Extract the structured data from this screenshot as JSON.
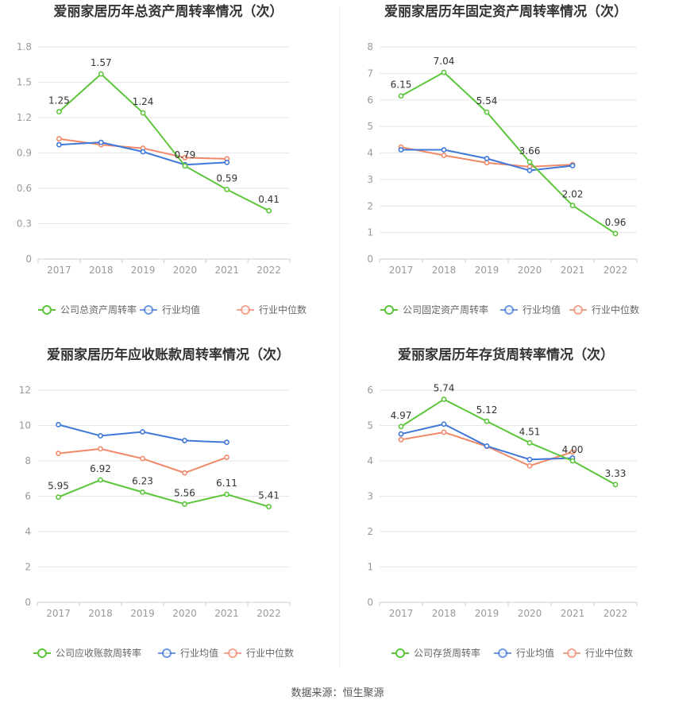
{
  "source_text": "数据来源：恒生聚源",
  "colors": {
    "company": "#5cc53a",
    "avg": "#3f78d8",
    "median": "#f0896a",
    "grid": "#e6e6e6",
    "axis": "#cccccc"
  },
  "chart_data": [
    {
      "type": "line",
      "title": "爱丽家居历年总资产周转率情况（次）",
      "categories": [
        "2017",
        "2018",
        "2019",
        "2020",
        "2021",
        "2022"
      ],
      "ylim": [
        0,
        1.8
      ],
      "yticks": [
        "0",
        "0.3",
        "0.6",
        "0.9",
        "1.2",
        "1.5",
        "1.8"
      ],
      "grid": true,
      "legend_position": "bottom",
      "series": [
        {
          "name": "公司总资产周转率",
          "values": [
            1.25,
            1.57,
            1.24,
            0.79,
            0.59,
            0.41
          ],
          "labels": [
            "1.25",
            "1.57",
            "1.24",
            "0.79",
            "0.59",
            "0.41"
          ]
        },
        {
          "name": "行业均值",
          "values": [
            0.97,
            0.99,
            0.91,
            0.8,
            0.82,
            null
          ]
        },
        {
          "name": "行业中位数",
          "values": [
            1.02,
            0.97,
            0.94,
            0.86,
            0.85,
            null
          ]
        }
      ]
    },
    {
      "type": "line",
      "title": "爱丽家居历年固定资产周转率情况（次）",
      "categories": [
        "2017",
        "2018",
        "2019",
        "2020",
        "2021",
        "2022"
      ],
      "ylim": [
        0,
        8
      ],
      "yticks": [
        "0",
        "1",
        "2",
        "3",
        "4",
        "5",
        "6",
        "7",
        "8"
      ],
      "grid": true,
      "legend_position": "bottom",
      "series": [
        {
          "name": "公司固定资产周转率",
          "values": [
            6.15,
            7.04,
            5.54,
            3.66,
            2.02,
            0.96
          ],
          "labels": [
            "6.15",
            "7.04",
            "5.54",
            "3.66",
            "2.02",
            "0.96"
          ]
        },
        {
          "name": "行业均值",
          "values": [
            4.12,
            4.12,
            3.79,
            3.34,
            3.52,
            null
          ]
        },
        {
          "name": "行业中位数",
          "values": [
            4.22,
            3.91,
            3.63,
            3.48,
            3.56,
            null
          ]
        }
      ]
    },
    {
      "type": "line",
      "title": "爱丽家居历年应收账款周转率情况（次）",
      "categories": [
        "2017",
        "2018",
        "2019",
        "2020",
        "2021",
        "2022"
      ],
      "ylim": [
        0,
        12
      ],
      "yticks": [
        "0",
        "2",
        "4",
        "6",
        "8",
        "10",
        "12"
      ],
      "grid": true,
      "legend_position": "bottom",
      "series": [
        {
          "name": "公司应收账款周转率",
          "values": [
            5.95,
            6.92,
            6.23,
            5.56,
            6.11,
            5.41
          ],
          "labels": [
            "5.95",
            "6.92",
            "6.23",
            "5.56",
            "6.11",
            "5.41"
          ]
        },
        {
          "name": "行业均值",
          "values": [
            10.05,
            9.42,
            9.64,
            9.15,
            9.05,
            null
          ]
        },
        {
          "name": "行业中位数",
          "values": [
            8.42,
            8.68,
            8.13,
            7.32,
            8.2,
            null
          ]
        }
      ]
    },
    {
      "type": "line",
      "title": "爱丽家居历年存货周转率情况（次）",
      "categories": [
        "2017",
        "2018",
        "2019",
        "2020",
        "2021",
        "2022"
      ],
      "ylim": [
        0,
        6
      ],
      "yticks": [
        "0",
        "1",
        "2",
        "3",
        "4",
        "5",
        "6"
      ],
      "grid": true,
      "legend_position": "bottom",
      "series": [
        {
          "name": "公司存货周转率",
          "values": [
            4.97,
            5.74,
            5.12,
            4.51,
            4.0,
            3.33
          ],
          "labels": [
            "4.97",
            "5.74",
            "5.12",
            "4.51",
            "4.00",
            "3.33"
          ]
        },
        {
          "name": "行业均值",
          "values": [
            4.76,
            5.04,
            4.42,
            4.04,
            4.08,
            null
          ]
        },
        {
          "name": "行业中位数",
          "values": [
            4.6,
            4.81,
            4.41,
            3.86,
            4.25,
            null
          ]
        }
      ]
    }
  ]
}
